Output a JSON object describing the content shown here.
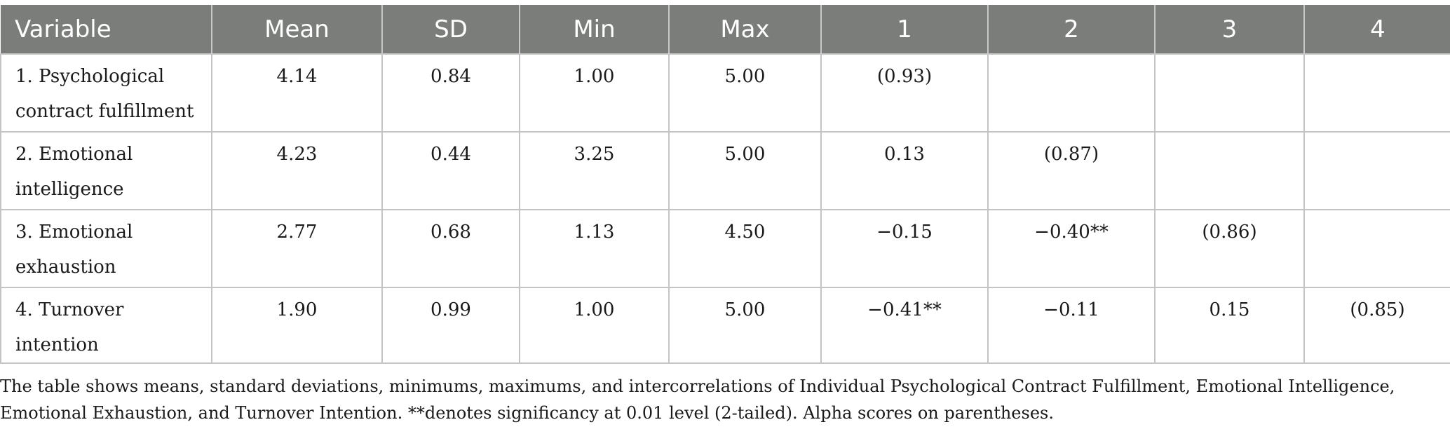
{
  "table": {
    "headers": [
      "Variable",
      "Mean",
      "SD",
      "Min",
      "Max",
      "1",
      "2",
      "3",
      "4"
    ],
    "rows": [
      [
        "1. Psychological contract fulfillment",
        "4.14",
        "0.84",
        "1.00",
        "5.00",
        "(0.93)",
        "",
        "",
        ""
      ],
      [
        "2. Emotional intelligence",
        "4.23",
        "0.44",
        "3.25",
        "5.00",
        "0.13",
        "(0.87)",
        "",
        ""
      ],
      [
        "3. Emotional exhaustion",
        "2.77",
        "0.68",
        "1.13",
        "4.50",
        "−0.15",
        "−0.40**",
        "(0.86)",
        ""
      ],
      [
        "4. Turnover intention",
        "1.90",
        "0.99",
        "1.00",
        "5.00",
        "−0.41**",
        "−0.11",
        "0.15",
        "(0.85)"
      ]
    ]
  },
  "note": "The table shows means, standard deviations, minimums, maximums, and intercorrelations of Individual Psychological Contract Fulfillment, Emotional Intelligence, Emotional Exhaustion, and Turnover Intention. **denotes significancy at 0.01 level (2-tailed). Alpha scores on parentheses."
}
